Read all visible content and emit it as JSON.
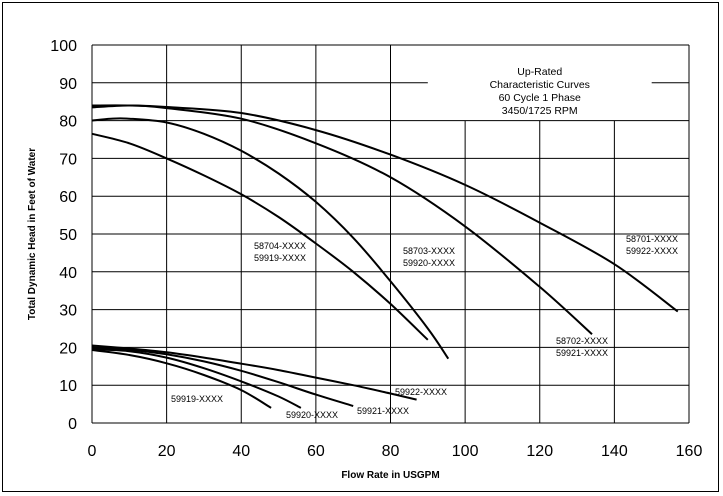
{
  "chart_data": {
    "type": "line",
    "title": "",
    "xlabel": "Flow Rate in USGPM",
    "ylabel": "Total Dynamic Head in Feet of Water",
    "xlim": [
      0,
      160
    ],
    "ylim": [
      0,
      100
    ],
    "x_ticks": [
      "0",
      "20",
      "40",
      "60",
      "80",
      "100",
      "120",
      "140",
      "160"
    ],
    "y_ticks": [
      "0",
      "10",
      "20",
      "30",
      "40",
      "50",
      "60",
      "70",
      "80",
      "90",
      "100"
    ],
    "grid": true,
    "legend": "none",
    "info_box": [
      "Up-Rated",
      "Characteristic Curves",
      "60 Cycle 1 Phase",
      "3450/1725 RPM"
    ],
    "series": [
      {
        "labels": [
          "58701-XXXX",
          "59922-XXXX"
        ],
        "x": [
          0,
          10,
          20,
          40,
          60,
          80,
          100,
          120,
          140,
          157
        ],
        "y": [
          84,
          84,
          83.6,
          82,
          77.5,
          71,
          63,
          53,
          42,
          29.5
        ]
      },
      {
        "labels": [
          "58702-XXXX",
          "59921-XXXX"
        ],
        "x": [
          0,
          10,
          20,
          40,
          60,
          80,
          100,
          120,
          134
        ],
        "y": [
          83.5,
          84,
          83.3,
          80.5,
          74,
          65,
          52,
          36,
          23.5
        ]
      },
      {
        "labels": [
          "58703-XXXX",
          "59920-XXXX"
        ],
        "x": [
          0,
          5,
          10,
          20,
          30,
          40,
          50,
          60,
          70,
          80,
          90,
          95.5
        ],
        "y": [
          80,
          80.5,
          80.5,
          79.5,
          76.5,
          72,
          66,
          58.5,
          49,
          37.5,
          25,
          17
        ]
      },
      {
        "labels": [
          "58704-XXXX",
          "59919-XXXX"
        ],
        "x": [
          0,
          10,
          20,
          30,
          40,
          50,
          60,
          70,
          80,
          90
        ],
        "y": [
          76.5,
          74,
          70,
          65.5,
          60.5,
          54.5,
          47.5,
          40,
          31.5,
          22
        ]
      },
      {
        "labels": [
          "59922-XXXX"
        ],
        "x": [
          0,
          10,
          20,
          30,
          40,
          50,
          60,
          70,
          80,
          87
        ],
        "y": [
          20.5,
          19.7,
          18.7,
          17.3,
          15.7,
          14,
          12,
          10,
          7.8,
          6.2
        ]
      },
      {
        "labels": [
          "59921-XXXX"
        ],
        "x": [
          0,
          10,
          20,
          30,
          40,
          50,
          60,
          70
        ],
        "y": [
          20,
          19.4,
          18.2,
          16.3,
          13.8,
          10.8,
          7.5,
          4.5
        ]
      },
      {
        "labels": [
          "59920-XXXX"
        ],
        "x": [
          0,
          10,
          20,
          30,
          40,
          50,
          56
        ],
        "y": [
          19.5,
          19,
          17.3,
          14.5,
          11,
          7,
          4
        ]
      },
      {
        "labels": [
          "59919-XXXX"
        ],
        "x": [
          0,
          10,
          20,
          30,
          40,
          48
        ],
        "y": [
          19.3,
          18,
          15.8,
          12.7,
          8.7,
          4
        ]
      }
    ]
  }
}
